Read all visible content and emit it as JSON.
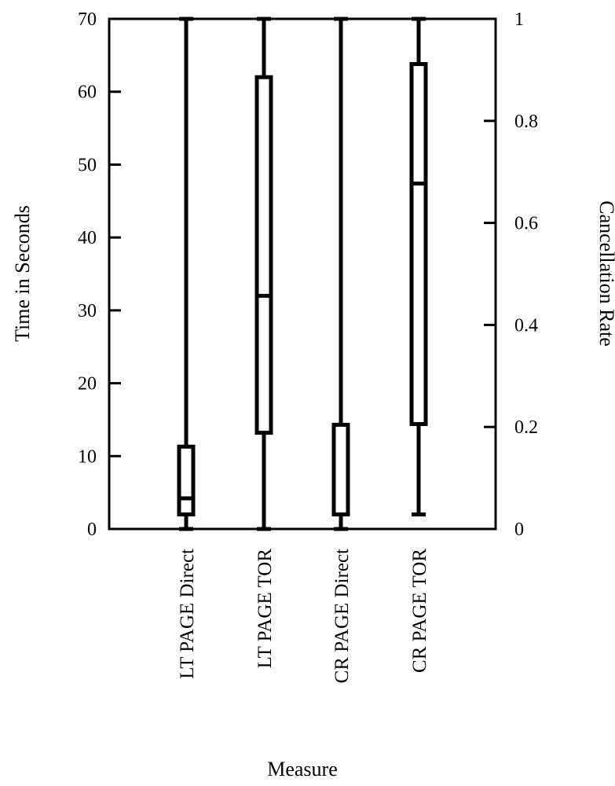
{
  "chart_data": {
    "type": "boxplot",
    "xlabel": "Measure",
    "ylabel": "Time in Seconds",
    "y2label": "Cancellation Rate",
    "ylim": [
      0,
      70
    ],
    "y2lim": [
      0,
      1
    ],
    "yticks": [
      "0",
      "10",
      "20",
      "30",
      "40",
      "50",
      "60",
      "70"
    ],
    "y2ticks": [
      "0",
      "0.2",
      "0.4",
      "0.6",
      "0.8",
      "1"
    ],
    "grid": false,
    "categories": [
      "LT PAGE Direct",
      "LT PAGE TOR",
      "CR PAGE Direct",
      "CR PAGE TOR"
    ],
    "boxes": [
      {
        "min": 0,
        "q1": 2,
        "median": 4.2,
        "q3": 11.3,
        "max": 70
      },
      {
        "min": 0,
        "q1": 13.2,
        "median": 32,
        "q3": 62,
        "max": 70
      },
      {
        "min": 0,
        "q1": 2,
        "median": 2,
        "q3": 14.3,
        "max": 70
      },
      {
        "min": 2,
        "q1": 14.4,
        "median": 47.4,
        "q3": 63.8,
        "max": 70
      }
    ]
  }
}
